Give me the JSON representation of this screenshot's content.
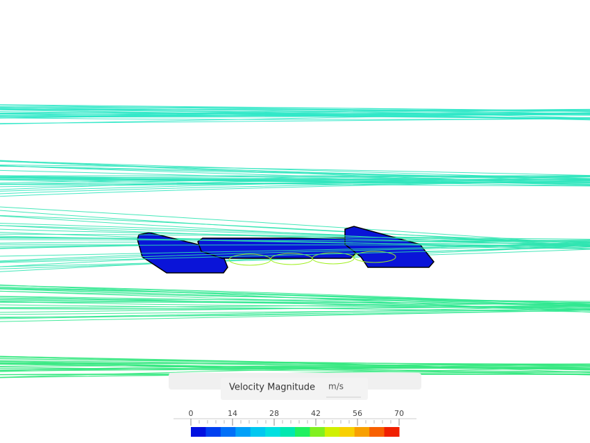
{
  "legend": {
    "title": "Velocity Magnitude",
    "unit": "m/s",
    "range": [
      0,
      70
    ],
    "ticks": [
      0,
      14,
      28,
      42,
      56,
      70
    ],
    "colors": [
      "#0010e0",
      "#0040f0",
      "#0070f8",
      "#00a0f8",
      "#00c8f0",
      "#00e0e0",
      "#00e8b0",
      "#20f060",
      "#80f020",
      "#d0f000",
      "#f8d000",
      "#f8a000",
      "#f86000",
      "#f02000"
    ]
  }
}
